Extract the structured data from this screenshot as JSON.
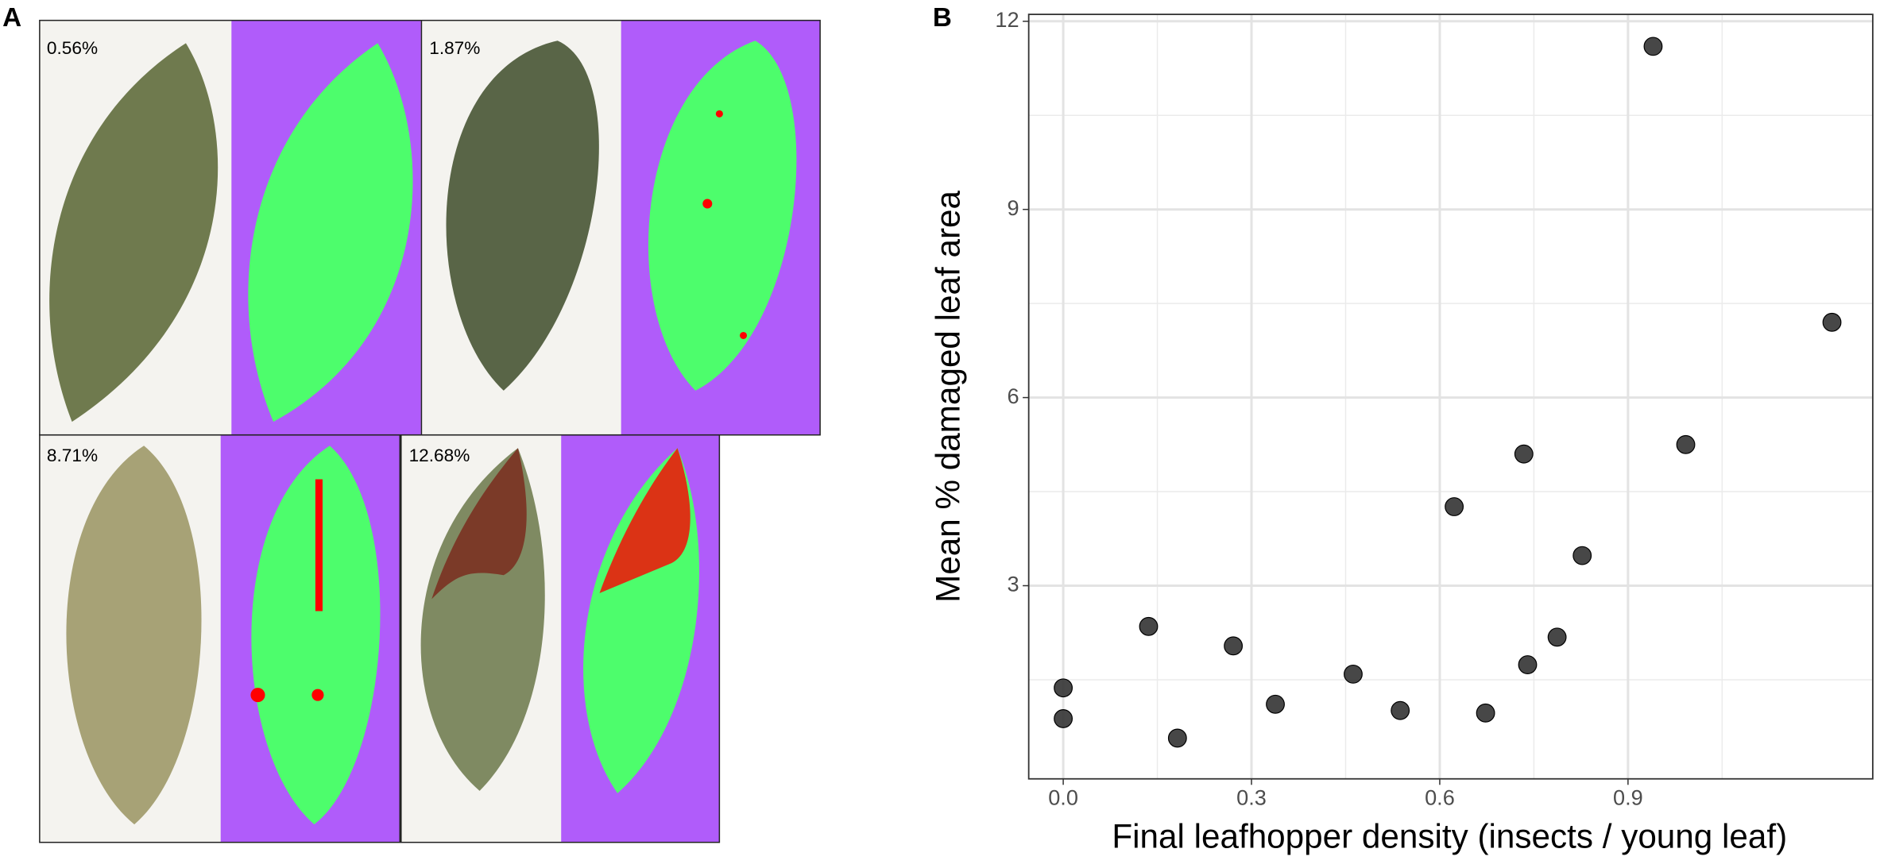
{
  "panel_labels": [
    "A",
    "B"
  ],
  "leaf_images": [
    {
      "label": "0.56%"
    },
    {
      "label": "1.87%"
    },
    {
      "label": "8.71%"
    },
    {
      "label": "12.68%"
    }
  ],
  "chart_data": {
    "type": "scatter",
    "x_label": "Final leafhopper density (insects / young leaf)",
    "y_label": "Mean % damaged leaf area",
    "x": [
      0,
      0,
      0.136,
      0.182,
      0.271,
      0.338,
      0.462,
      0.537,
      0.623,
      0.673,
      0.734,
      0.74,
      0.787,
      0.827,
      0.94,
      0.992,
      1.225
    ],
    "y": [
      1.37,
      0.88,
      2.35,
      0.57,
      2.04,
      1.11,
      1.59,
      1.01,
      4.26,
      0.97,
      5.1,
      1.74,
      2.18,
      3.48,
      11.6,
      5.25,
      7.2
    ],
    "color": "#333333",
    "xlim": [
      -0.055,
      1.29
    ],
    "ylim": [
      -0.08,
      12.11
    ],
    "xticks": [
      {
        "value": 0,
        "label": "0.0"
      },
      0.3,
      0.6,
      0.9
    ],
    "yticks": [
      3,
      6,
      9,
      12
    ],
    "x_minor_grid": [
      0.15,
      0.45,
      0.75,
      1.05
    ],
    "y_minor_grid": [
      1.5,
      4.5,
      7.5,
      10.5
    ],
    "grid": true
  }
}
